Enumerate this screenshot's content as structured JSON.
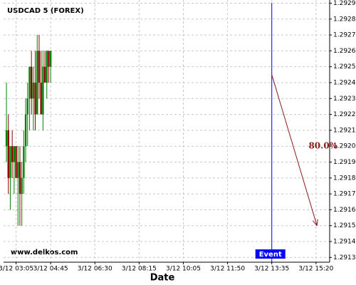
{
  "chart_data": {
    "type": "candlestick",
    "title": "USDCAD 5 (FOREX)",
    "watermark": "www.delkos.com",
    "x_label": "Date",
    "x": [
      0,
      1,
      2,
      3,
      4,
      5,
      6,
      7,
      8,
      9,
      10,
      11,
      12,
      13,
      14,
      15,
      16,
      17,
      18,
      19,
      20,
      21,
      22,
      23
    ],
    "open": [
      1.292,
      1.2921,
      1.2918,
      1.292,
      1.2919,
      1.292,
      1.2918,
      1.2919,
      1.2917,
      1.2918,
      1.292,
      1.2922,
      1.2923,
      1.2925,
      1.2923,
      1.2924,
      1.2922,
      1.2926,
      1.2924,
      1.2922,
      1.2925,
      1.2924,
      1.2926,
      1.2925
    ],
    "high": [
      1.2924,
      1.2922,
      1.292,
      1.2921,
      1.292,
      1.292,
      1.292,
      1.292,
      1.2919,
      1.2921,
      1.2923,
      1.2924,
      1.2925,
      1.2926,
      1.2925,
      1.2926,
      1.2927,
      1.2927,
      1.2926,
      1.2926,
      1.2926,
      1.2926,
      1.2926,
      1.2926
    ],
    "low": [
      1.2919,
      1.2917,
      1.2916,
      1.2918,
      1.2917,
      1.2918,
      1.2915,
      1.2915,
      1.2915,
      1.2917,
      1.2919,
      1.292,
      1.2921,
      1.2922,
      1.2921,
      1.2921,
      1.2922,
      1.2923,
      1.2922,
      1.2921,
      1.2924,
      1.2923,
      1.2924,
      1.2924
    ],
    "close": [
      1.2921,
      1.2918,
      1.292,
      1.2919,
      1.292,
      1.2918,
      1.2919,
      1.2917,
      1.2918,
      1.292,
      1.2922,
      1.2923,
      1.2925,
      1.2923,
      1.2924,
      1.2922,
      1.2926,
      1.2924,
      1.2922,
      1.2925,
      1.2924,
      1.2926,
      1.2925,
      1.2926
    ],
    "up_color": "#008000",
    "down_color": "#8b0000",
    "xlim": [
      -1.5,
      168.1
    ],
    "xticks": [
      {
        "value": 5,
        "label": "3/12 03:05"
      },
      {
        "value": 23,
        "label": "3/12 04:45"
      },
      {
        "value": 46,
        "label": "3/12 06:30"
      },
      {
        "value": 69,
        "label": "3/12 08:15"
      },
      {
        "value": 92,
        "label": "3/12 10:05"
      },
      {
        "value": 115,
        "label": "3/12 11:50"
      },
      {
        "value": 138,
        "label": "3/12 13:35"
      },
      {
        "value": 161,
        "label": "3/12 15:20"
      }
    ],
    "ylim": [
      1.29127,
      1.29292
    ],
    "yticks": [
      1.2913,
      1.2914,
      1.2915,
      1.2916,
      1.2917,
      1.2918,
      1.2919,
      {
        "value": 1.292,
        "label": "1.2920"
      },
      1.2921,
      1.2922,
      1.2923,
      1.2924,
      1.2925,
      1.2926,
      1.2927,
      1.2928,
      1.2929
    ],
    "grid": true,
    "event": {
      "label": "Event",
      "x": 138,
      "color": "#0000ff"
    },
    "forecast": {
      "x": [
        138,
        161.5
      ],
      "y": [
        1.29245,
        1.2915
      ],
      "label": "80.0%",
      "color": "#8b1a1a"
    }
  }
}
